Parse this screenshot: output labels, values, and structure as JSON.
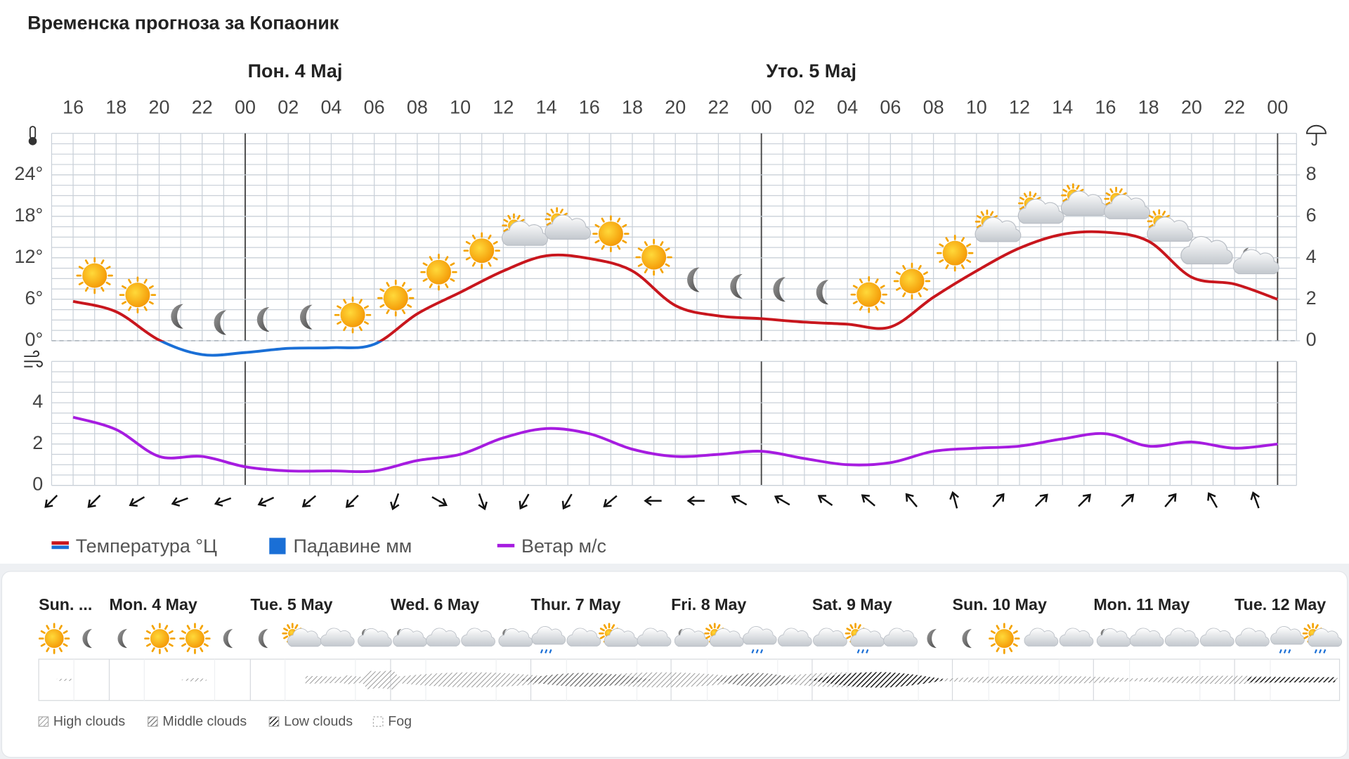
{
  "title": "Временска прогноза за Копаоник",
  "chart_data": [
    {
      "type": "line",
      "days": [
        "Пон. 4 Мај",
        "Уто. 5 Мај"
      ],
      "categories": [
        "16",
        "18",
        "20",
        "22",
        "00",
        "02",
        "04",
        "06",
        "08",
        "10",
        "12",
        "14",
        "16",
        "18",
        "20",
        "22",
        "00",
        "02",
        "04",
        "06",
        "08",
        "10",
        "12",
        "14",
        "16",
        "18",
        "20",
        "22",
        "00"
      ],
      "series": [
        {
          "name": "Температура °Ц",
          "color": "#c8161d",
          "values": [
            5.7,
            4.2,
            0.1,
            -2.0,
            -1.7,
            -1.1,
            -1.0,
            -0.5,
            3.9,
            7.0,
            10.1,
            12.3,
            11.9,
            10.1,
            5.1,
            3.6,
            3.2,
            2.7,
            2.4,
            2.0,
            6.3,
            10.1,
            13.4,
            15.4,
            15.7,
            14.4,
            9.2,
            8.2,
            6.0
          ]
        },
        {
          "name": "Падавине мм",
          "color": "#1a6fd6",
          "axis": "y2",
          "values": [
            0,
            0,
            0,
            0,
            0,
            0,
            0,
            0,
            0,
            0,
            0,
            0,
            0,
            0,
            0,
            0,
            0,
            0,
            0,
            0,
            0,
            0,
            0,
            0,
            0,
            0,
            0,
            0,
            0
          ]
        }
      ],
      "ylim": [
        0,
        30
      ],
      "yticks": [
        {
          "value": 0,
          "label": "0°"
        },
        {
          "value": 6,
          "label": "6°"
        },
        {
          "value": 12,
          "label": "12°"
        },
        {
          "value": 18,
          "label": "18°"
        },
        {
          "value": 24,
          "label": "24°"
        }
      ],
      "y2lim": [
        0,
        10
      ],
      "y2ticks": [
        0,
        2,
        4,
        6,
        8
      ],
      "grid": true
    },
    {
      "type": "line",
      "series": [
        {
          "name": "Ветар м/с",
          "color": "#a61ce0",
          "values": [
            3.3,
            2.7,
            1.4,
            1.4,
            0.9,
            0.7,
            0.7,
            0.7,
            1.2,
            1.5,
            2.3,
            2.75,
            2.5,
            1.75,
            1.4,
            1.5,
            1.65,
            1.3,
            1.0,
            1.1,
            1.65,
            1.8,
            1.9,
            2.25,
            2.5,
            1.9,
            2.1,
            1.8,
            2.0
          ]
        }
      ],
      "wind_direction": [
        225,
        225,
        240,
        250,
        250,
        245,
        230,
        225,
        200,
        120,
        160,
        210,
        210,
        230,
        270,
        270,
        300,
        300,
        305,
        310,
        320,
        345,
        40,
        45,
        45,
        45,
        40,
        330,
        340
      ],
      "ylim": [
        0,
        6
      ],
      "yticks": [
        0,
        2,
        4
      ],
      "grid": true
    }
  ],
  "overview": {
    "days": [
      "Sun. ...",
      "Mon. 4 May",
      "Tue. 5 May",
      "Wed. 6 May",
      "Thur. 7 May",
      "Fri. 8 May",
      "Sat. 9 May",
      "Sun. 10 May",
      "Mon. 11 May",
      "Tue. 12 May"
    ],
    "cloud_legend": [
      "High clouds",
      "Middle clouds",
      "Low clouds",
      "Fog"
    ]
  }
}
